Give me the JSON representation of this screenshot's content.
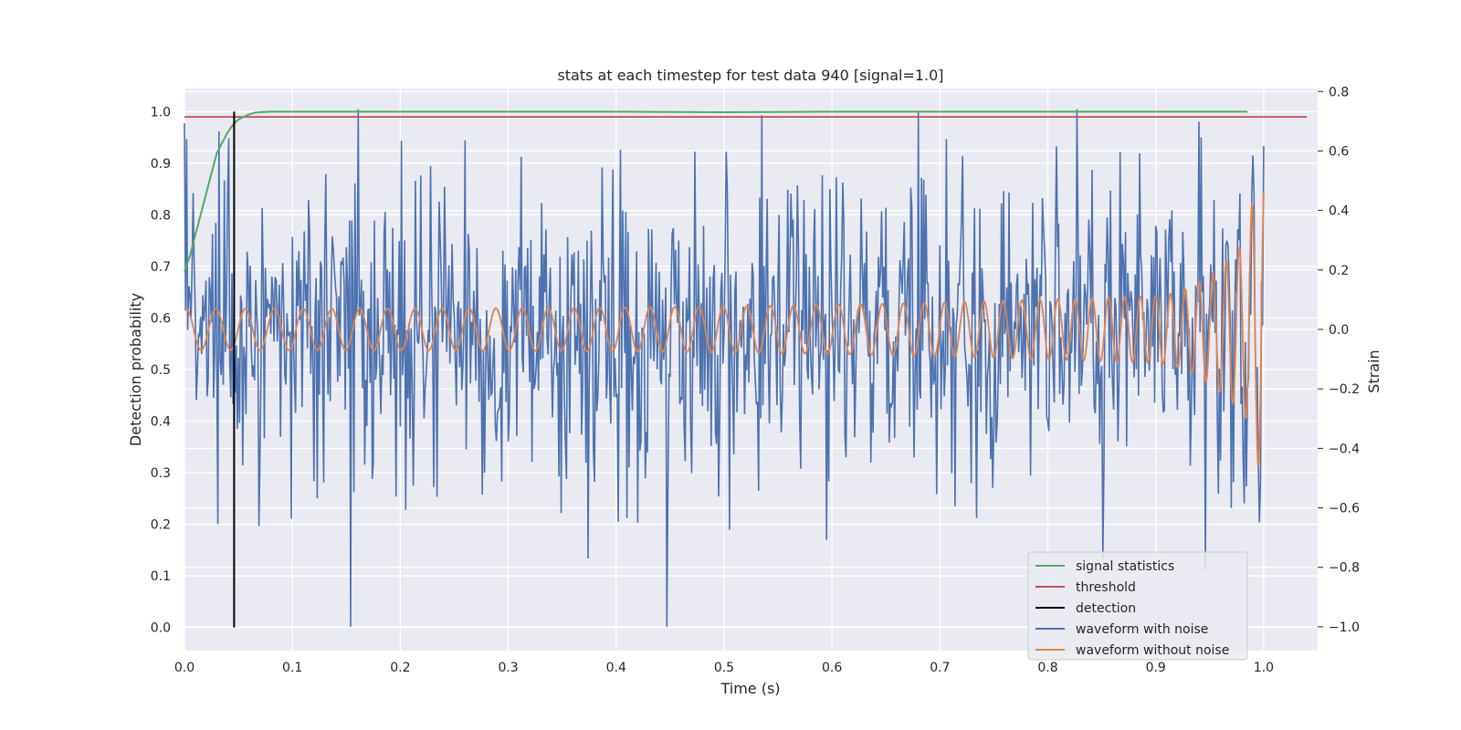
{
  "chart_data": {
    "type": "line",
    "title": "stats at each timestep for test data 940 [signal=1.0]",
    "xlabel": "Time (s)",
    "ylabel_left": "Detection probability",
    "ylabel_right": "Strain",
    "xlim": [
      0.0,
      1.05
    ],
    "ylim_left": [
      -0.045,
      1.045
    ],
    "ylim_right": [
      -1.08,
      0.81
    ],
    "xticks": [
      "0.0",
      "0.1",
      "0.2",
      "0.3",
      "0.4",
      "0.5",
      "0.6",
      "0.7",
      "0.8",
      "0.9",
      "1.0"
    ],
    "yticks_left": [
      "0.0",
      "0.1",
      "0.2",
      "0.3",
      "0.4",
      "0.5",
      "0.6",
      "0.7",
      "0.8",
      "0.9",
      "1.0"
    ],
    "yticks_right": [
      "−1.0",
      "−0.8",
      "−0.6",
      "−0.4",
      "−0.2",
      "0.0",
      "0.2",
      "0.4",
      "0.6",
      "0.8"
    ],
    "grid": true,
    "legend_position": "lower right",
    "colors": {
      "signal_statistics": "#55a868",
      "threshold": "#c44e52",
      "detection": "#000000",
      "waveform_with_noise": "#4c72b0",
      "waveform_without_noise": "#dd8452",
      "background": "#eaeaf2",
      "grid": "#ffffff"
    },
    "series": [
      {
        "name": "signal statistics",
        "axis": "left",
        "x": [
          0.0,
          0.005,
          0.01,
          0.015,
          0.02,
          0.025,
          0.03,
          0.035,
          0.04,
          0.045,
          0.05,
          0.055,
          0.06,
          0.065,
          0.07,
          0.08,
          0.09,
          0.1,
          0.2,
          0.3,
          0.4,
          0.5,
          0.6,
          0.7,
          0.8,
          0.9,
          0.985
        ],
        "y": [
          0.69,
          0.72,
          0.76,
          0.8,
          0.84,
          0.88,
          0.92,
          0.94,
          0.96,
          0.975,
          0.985,
          0.99,
          0.995,
          0.998,
          0.999,
          1.0,
          1.0,
          1.0,
          1.0,
          1.0,
          1.0,
          0.999,
          1.0,
          1.0,
          1.0,
          1.0,
          1.0
        ]
      },
      {
        "name": "threshold",
        "axis": "left",
        "x": [
          0.0,
          1.04
        ],
        "y": [
          0.99,
          0.99
        ]
      },
      {
        "name": "detection",
        "axis": "left",
        "x": [
          0.046,
          0.046
        ],
        "y": [
          0.0,
          1.0
        ]
      },
      {
        "name": "waveform with noise",
        "axis": "right",
        "note_peaks": [
          [
            0.447,
            -1.0
          ],
          [
            0.68,
            0.73
          ],
          [
            0.535,
            0.72
          ],
          [
            0.002,
            0.64
          ],
          [
            0.374,
            -0.77
          ],
          [
            0.851,
            -0.77
          ],
          [
            0.946,
            -0.81
          ]
        ]
      },
      {
        "name": "waveform without noise",
        "axis": "right"
      }
    ]
  },
  "legend": {
    "items": [
      {
        "label": "signal statistics",
        "color": "#55a868"
      },
      {
        "label": "threshold",
        "color": "#c44e52"
      },
      {
        "label": "detection",
        "color": "#000000"
      },
      {
        "label": "waveform with noise",
        "color": "#4c72b0"
      },
      {
        "label": "waveform without noise",
        "color": "#dd8452"
      }
    ]
  }
}
